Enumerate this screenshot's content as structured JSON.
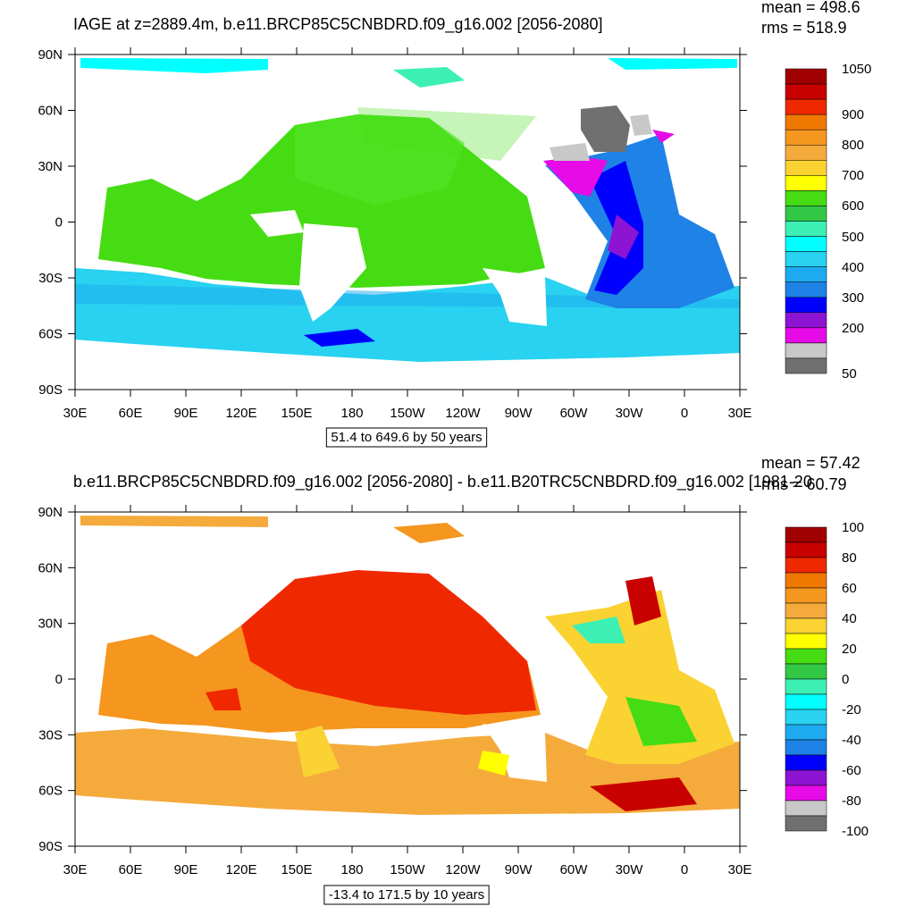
{
  "panels": [
    {
      "title": "IAGE at z=2889.4m, b.e11.BRCP85C5CNBDRD.f09_g16.002 [2056-2080]",
      "mean": "mean = 498.6",
      "rms": "rms = 518.9",
      "range_note": "51.4 to 649.6 by 50 years",
      "colorbar_labels": [
        "1050",
        "900",
        "800",
        "700",
        "600",
        "500",
        "400",
        "300",
        "200",
        "50"
      ]
    },
    {
      "title": "b.e11.BRCP85C5CNBDRD.f09_g16.002 [2056-2080] - b.e11.B20TRC5CNBDRD.f09_g16.002 [1981-20",
      "mean": "mean = 57.42",
      "rms": "rms = 60.79",
      "range_note": "-13.4 to 171.5 by 10 years",
      "colorbar_labels": [
        "100",
        "80",
        "60",
        "40",
        "20",
        "0",
        "-20",
        "-40",
        "-60",
        "-80",
        "-100"
      ]
    }
  ],
  "lat_labels": [
    "90N",
    "60N",
    "30N",
    "0",
    "30S",
    "60S",
    "90S"
  ],
  "lon_labels": [
    "30E",
    "60E",
    "90E",
    "120E",
    "150E",
    "180",
    "150W",
    "120W",
    "90W",
    "60W",
    "30W",
    "0",
    "30E"
  ]
}
